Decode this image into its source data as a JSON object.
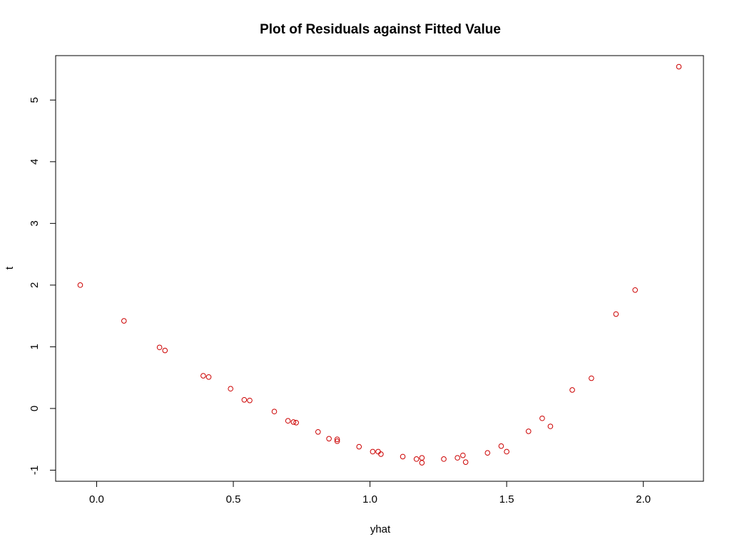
{
  "chart_data": {
    "type": "scatter",
    "title": "Plot of Residuals against Fitted Value",
    "xlabel": "yhat",
    "ylabel": "t",
    "xlim": [
      -0.15,
      2.22
    ],
    "ylim": [
      -1.18,
      5.72
    ],
    "xticks": [
      0.0,
      0.5,
      1.0,
      1.5,
      2.0
    ],
    "xtick_labels": [
      "0.0",
      "0.5",
      "1.0",
      "1.5",
      "2.0"
    ],
    "yticks": [
      -1,
      0,
      1,
      2,
      3,
      4,
      5
    ],
    "ytick_labels": [
      "-1",
      "0",
      "1",
      "2",
      "3",
      "4",
      "5"
    ],
    "grid": false,
    "legend": "none",
    "point_color": "#cc0000",
    "series": [
      {
        "x": [
          -0.06,
          0.1,
          0.23,
          0.25,
          0.39,
          0.41,
          0.49,
          0.54,
          0.56,
          0.65,
          0.7,
          0.72,
          0.73,
          0.81,
          0.85,
          0.88,
          0.88,
          0.96,
          1.01,
          1.03,
          1.04,
          1.12,
          1.17,
          1.19,
          1.19,
          1.27,
          1.32,
          1.34,
          1.35,
          1.43,
          1.48,
          1.5,
          1.58,
          1.63,
          1.66,
          1.74,
          1.81,
          1.9,
          1.97,
          2.13
        ],
        "y": [
          2.0,
          1.42,
          0.99,
          0.94,
          0.53,
          0.51,
          0.32,
          0.14,
          0.13,
          -0.05,
          -0.2,
          -0.22,
          -0.23,
          -0.38,
          -0.49,
          -0.5,
          -0.53,
          -0.62,
          -0.7,
          -0.7,
          -0.74,
          -0.78,
          -0.82,
          -0.8,
          -0.88,
          -0.82,
          -0.8,
          -0.76,
          -0.87,
          -0.72,
          -0.61,
          -0.7,
          -0.37,
          -0.16,
          -0.29,
          0.3,
          0.49,
          1.53,
          1.92,
          5.54
        ]
      }
    ]
  }
}
